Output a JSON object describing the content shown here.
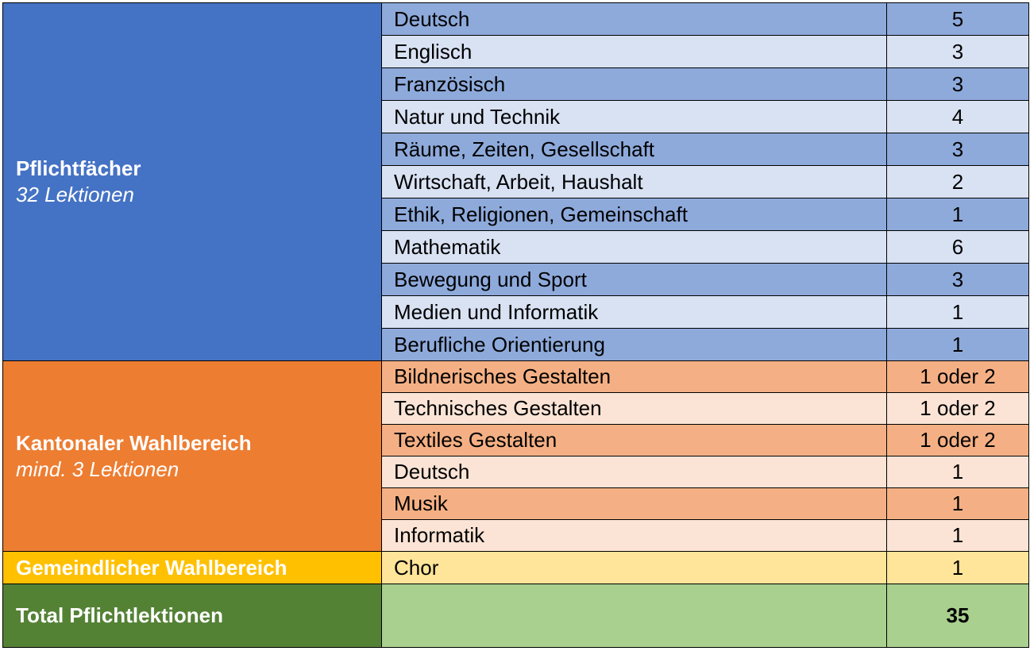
{
  "pflicht": {
    "title": "Pflichtfächer",
    "subtitle": "32 Lektionen",
    "rows": [
      {
        "subject": "Deutsch",
        "value": "5"
      },
      {
        "subject": "Englisch",
        "value": "3"
      },
      {
        "subject": "Französisch",
        "value": "3"
      },
      {
        "subject": "Natur und Technik",
        "value": "4"
      },
      {
        "subject": "Räume, Zeiten, Gesellschaft",
        "value": "3"
      },
      {
        "subject": "Wirtschaft, Arbeit, Haushalt",
        "value": "2"
      },
      {
        "subject": "Ethik, Religionen, Gemeinschaft",
        "value": "1"
      },
      {
        "subject": "Mathematik",
        "value": "6"
      },
      {
        "subject": "Bewegung und Sport",
        "value": "3"
      },
      {
        "subject": "Medien und Informatik",
        "value": "1"
      },
      {
        "subject": "Berufliche Orientierung",
        "value": "1"
      }
    ]
  },
  "kantonal": {
    "title": "Kantonaler Wahlbereich",
    "subtitle": "mind. 3 Lektionen",
    "rows": [
      {
        "subject": "Bildnerisches Gestalten",
        "value": "1 oder 2"
      },
      {
        "subject": "Technisches Gestalten",
        "value": "1 oder 2"
      },
      {
        "subject": "Textiles Gestalten",
        "value": "1 oder 2"
      },
      {
        "subject": "Deutsch",
        "value": "1"
      },
      {
        "subject": "Musik",
        "value": "1"
      },
      {
        "subject": "Informatik",
        "value": "1"
      }
    ]
  },
  "gemeindlich": {
    "title": "Gemeindlicher Wahlbereich",
    "rows": [
      {
        "subject": "Chor",
        "value": "1"
      }
    ]
  },
  "total": {
    "title": "Total Pflichtlektionen",
    "value": "35"
  },
  "colors": {
    "blue_category": "#4472c4",
    "blue_dark": "#8eaadb",
    "blue_light": "#d9e2f3",
    "orange_category": "#ed7d31",
    "orange_dark": "#f4b084",
    "orange_light": "#fbe4d5",
    "yellow_category": "#ffc000",
    "yellow_light": "#ffe599",
    "green_category": "#548235",
    "green_light": "#a9d08e"
  }
}
